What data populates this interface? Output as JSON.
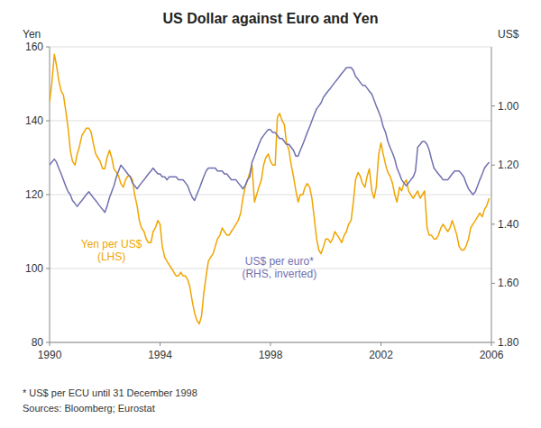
{
  "chart_data": {
    "type": "line",
    "title": "US Dollar against Euro and Yen",
    "ylabel": "Yen",
    "y2label": "US$",
    "annotations": [
      "* US$ per ECU until 31 December 1998",
      "Sources: Bloomberg; Eurostat"
    ],
    "grid": true,
    "xlim": [
      1990.0,
      2006.0
    ],
    "xticks": [
      1990,
      1994,
      1998,
      2002,
      2006
    ],
    "ylim": [
      80,
      160
    ],
    "yticks": [
      80,
      100,
      120,
      140,
      160
    ],
    "y2lim": [
      1.8,
      0.8
    ],
    "y2ticks": [
      {
        "value": 1.0,
        "label": "1.00"
      },
      {
        "value": 1.2,
        "label": "1.20"
      },
      {
        "value": 1.4,
        "label": "1.40"
      },
      {
        "value": 1.6,
        "label": "1.60"
      },
      {
        "value": 1.8,
        "label": "1.80"
      }
    ],
    "x": [
      1990.0,
      1990.08,
      1990.17,
      1990.25,
      1990.33,
      1990.42,
      1990.5,
      1990.58,
      1990.67,
      1990.75,
      1990.83,
      1990.92,
      1991.0,
      1991.08,
      1991.17,
      1991.25,
      1991.33,
      1991.42,
      1991.5,
      1991.58,
      1991.67,
      1991.75,
      1991.83,
      1991.92,
      1992.0,
      1992.08,
      1992.17,
      1992.25,
      1992.33,
      1992.42,
      1992.5,
      1992.58,
      1992.67,
      1992.75,
      1992.83,
      1992.92,
      1993.0,
      1993.08,
      1993.17,
      1993.25,
      1993.33,
      1993.42,
      1993.5,
      1993.58,
      1993.67,
      1993.75,
      1993.83,
      1993.92,
      1994.0,
      1994.08,
      1994.17,
      1994.25,
      1994.33,
      1994.42,
      1994.5,
      1994.58,
      1994.67,
      1994.75,
      1994.83,
      1994.92,
      1995.0,
      1995.08,
      1995.17,
      1995.25,
      1995.33,
      1995.42,
      1995.5,
      1995.58,
      1995.67,
      1995.75,
      1995.83,
      1995.92,
      1996.0,
      1996.08,
      1996.17,
      1996.25,
      1996.33,
      1996.42,
      1996.5,
      1996.58,
      1996.67,
      1996.75,
      1996.83,
      1996.92,
      1997.0,
      1997.08,
      1997.17,
      1997.25,
      1997.33,
      1997.42,
      1997.5,
      1997.58,
      1997.67,
      1997.75,
      1997.83,
      1997.92,
      1998.0,
      1998.08,
      1998.17,
      1998.25,
      1998.33,
      1998.42,
      1998.5,
      1998.58,
      1998.67,
      1998.75,
      1998.83,
      1998.92,
      1999.0,
      1999.08,
      1999.17,
      1999.25,
      1999.33,
      1999.42,
      1999.5,
      1999.58,
      1999.67,
      1999.75,
      1999.83,
      1999.92,
      2000.0,
      2000.08,
      2000.17,
      2000.25,
      2000.33,
      2000.42,
      2000.5,
      2000.58,
      2000.67,
      2000.75,
      2000.83,
      2000.92,
      2001.0,
      2001.08,
      2001.17,
      2001.25,
      2001.33,
      2001.42,
      2001.5,
      2001.58,
      2001.67,
      2001.75,
      2001.83,
      2001.92,
      2002.0,
      2002.08,
      2002.17,
      2002.25,
      2002.33,
      2002.42,
      2002.5,
      2002.58,
      2002.67,
      2002.75,
      2002.83,
      2002.92,
      2003.0,
      2003.08,
      2003.17,
      2003.25,
      2003.33,
      2003.42,
      2003.5,
      2003.58,
      2003.67,
      2003.75,
      2003.83,
      2003.92,
      2004.0,
      2004.08,
      2004.17,
      2004.25,
      2004.33,
      2004.42,
      2004.5,
      2004.58,
      2004.67,
      2004.75,
      2004.83,
      2004.92,
      2005.0,
      2005.08,
      2005.17,
      2005.25,
      2005.33,
      2005.42,
      2005.5,
      2005.58,
      2005.67,
      2005.75,
      2005.83,
      2005.92
    ],
    "series": [
      {
        "name": "Yen per US$\n(LHS)",
        "color": "#F0A500",
        "axis": "y",
        "values": [
          145,
          150,
          158,
          155,
          151,
          148,
          147,
          143,
          138,
          132,
          129,
          128,
          131,
          133,
          136,
          137,
          138,
          138,
          137,
          134,
          131,
          130,
          129,
          127,
          127,
          130,
          132,
          130,
          127,
          126,
          125,
          123,
          122,
          124,
          125,
          125,
          124,
          120,
          117,
          113,
          111,
          110,
          108,
          107,
          107,
          110,
          111,
          113,
          112,
          106,
          103,
          102,
          101,
          100,
          99,
          98,
          98,
          99,
          98,
          98,
          97,
          95,
          91,
          88,
          86,
          85,
          87,
          93,
          98,
          102,
          103,
          104,
          106,
          108,
          109,
          111,
          110,
          109,
          109,
          110,
          111,
          112,
          113,
          115,
          119,
          122,
          124,
          126,
          128,
          118,
          120,
          122,
          124,
          128,
          130,
          131,
          129,
          128,
          128,
          141,
          142,
          140,
          139,
          134,
          132,
          128,
          125,
          121,
          118,
          120,
          120,
          122,
          123,
          122,
          119,
          114,
          108,
          105,
          104,
          106,
          108,
          108,
          107,
          108,
          110,
          109,
          108,
          107,
          109,
          110,
          112,
          113,
          118,
          124,
          126,
          125,
          123,
          122,
          125,
          127,
          121,
          119,
          122,
          131,
          134,
          131,
          128,
          126,
          125,
          123,
          120,
          118,
          122,
          121,
          123,
          124,
          121,
          120,
          119,
          120,
          121,
          119,
          120,
          121,
          111,
          109,
          109,
          108,
          108,
          109,
          111,
          112,
          111,
          110,
          111,
          113,
          111,
          109,
          106,
          105,
          105,
          106,
          108,
          111,
          112,
          113,
          114,
          115,
          114,
          116,
          117,
          119
        ]
      },
      {
        "name": "US$ per euro*\n(RHS, inverted)",
        "color": "#7070B0",
        "axis": "y2",
        "values": [
          1.2,
          1.19,
          1.18,
          1.19,
          1.21,
          1.23,
          1.25,
          1.27,
          1.29,
          1.3,
          1.32,
          1.33,
          1.34,
          1.33,
          1.32,
          1.31,
          1.3,
          1.29,
          1.3,
          1.31,
          1.32,
          1.33,
          1.34,
          1.35,
          1.36,
          1.34,
          1.31,
          1.29,
          1.27,
          1.24,
          1.22,
          1.2,
          1.21,
          1.22,
          1.23,
          1.24,
          1.26,
          1.27,
          1.28,
          1.27,
          1.26,
          1.25,
          1.24,
          1.23,
          1.22,
          1.21,
          1.22,
          1.23,
          1.23,
          1.24,
          1.24,
          1.25,
          1.24,
          1.24,
          1.24,
          1.24,
          1.25,
          1.25,
          1.25,
          1.26,
          1.27,
          1.29,
          1.31,
          1.32,
          1.3,
          1.28,
          1.26,
          1.24,
          1.22,
          1.21,
          1.21,
          1.21,
          1.21,
          1.22,
          1.22,
          1.22,
          1.23,
          1.23,
          1.24,
          1.25,
          1.25,
          1.25,
          1.26,
          1.27,
          1.28,
          1.27,
          1.25,
          1.24,
          1.19,
          1.17,
          1.15,
          1.13,
          1.11,
          1.1,
          1.09,
          1.08,
          1.08,
          1.09,
          1.09,
          1.1,
          1.11,
          1.11,
          1.12,
          1.13,
          1.13,
          1.14,
          1.15,
          1.17,
          1.17,
          1.15,
          1.13,
          1.11,
          1.09,
          1.07,
          1.05,
          1.03,
          1.01,
          1.0,
          0.99,
          0.97,
          0.96,
          0.95,
          0.94,
          0.93,
          0.92,
          0.91,
          0.9,
          0.89,
          0.88,
          0.87,
          0.87,
          0.87,
          0.88,
          0.9,
          0.91,
          0.92,
          0.93,
          0.93,
          0.94,
          0.95,
          0.96,
          0.98,
          1.0,
          1.02,
          1.04,
          1.07,
          1.09,
          1.12,
          1.14,
          1.16,
          1.18,
          1.21,
          1.23,
          1.25,
          1.26,
          1.27,
          1.26,
          1.25,
          1.24,
          1.22,
          1.14,
          1.13,
          1.12,
          1.12,
          1.13,
          1.15,
          1.18,
          1.21,
          1.22,
          1.23,
          1.24,
          1.25,
          1.25,
          1.25,
          1.24,
          1.23,
          1.22,
          1.22,
          1.22,
          1.23,
          1.24,
          1.26,
          1.28,
          1.29,
          1.3,
          1.29,
          1.27,
          1.25,
          1.23,
          1.21,
          1.2,
          1.19
        ]
      }
    ]
  }
}
